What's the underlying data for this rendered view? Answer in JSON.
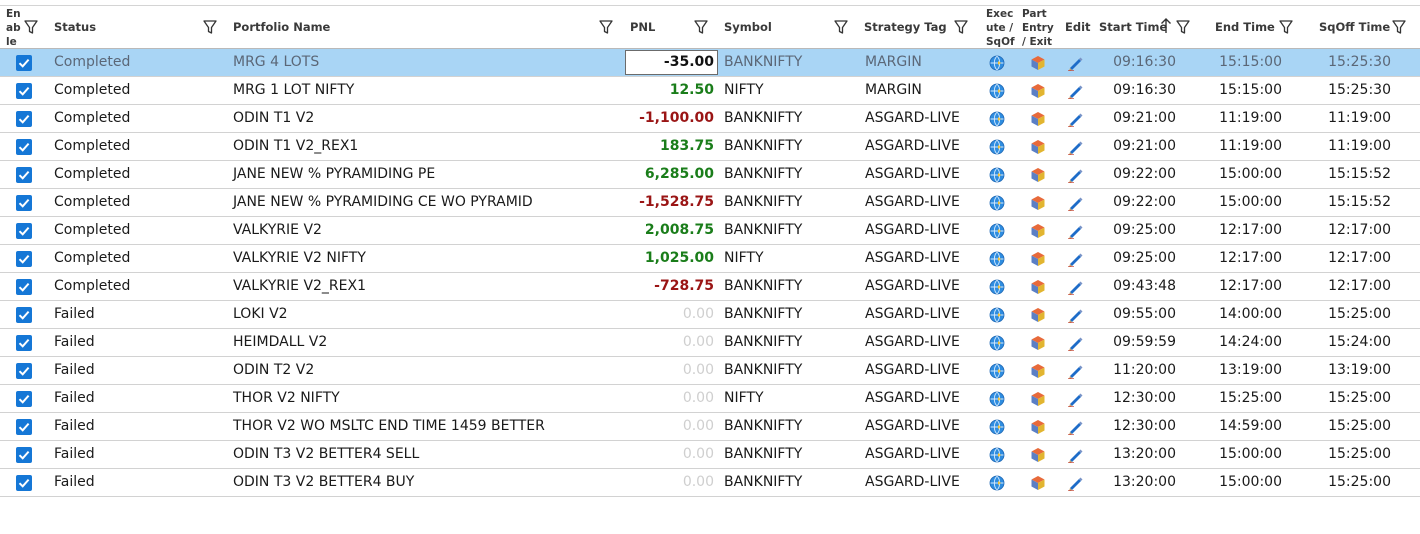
{
  "columns": {
    "enable": [
      "En",
      "ab",
      "le"
    ],
    "status": "Status",
    "portfolio": "Portfolio Name",
    "pnl": "PNL",
    "symbol": "Symbol",
    "strategy": "Strategy Tag",
    "execute": [
      "Exec",
      "ute /",
      "SqOf"
    ],
    "part_entry": [
      "Part",
      "Entry",
      "/ Exit"
    ],
    "edit": "Edit",
    "start_time": "Start Time",
    "end_time": "End Time",
    "sqoff_time": "SqOff Time"
  },
  "colors": {
    "selected_row": "#a9d5f5",
    "checkbox": "#1577d6",
    "pnl_positive": "#1a7d1a",
    "pnl_negative": "#9a1515",
    "pnl_zero": "#cfcfcf"
  },
  "icons": {
    "filter": "filter-icon",
    "sort": "sort-ascending-icon",
    "execute": "execute-globe-icon",
    "part_entry": "part-entry-cube-icon",
    "edit": "edit-pencil-icon",
    "checkbox": "checkbox-checked-icon"
  },
  "rows": [
    {
      "status": "Completed",
      "portfolio": "MRG 4 LOTS",
      "pnl": "-35.00",
      "pnl_sign": "neg",
      "symbol": "BANKNIFTY",
      "strategy": "MARGIN",
      "start": "09:16:30",
      "end": "15:15:00",
      "sqoff": "15:25:30",
      "selected": true
    },
    {
      "status": "Completed",
      "portfolio": "MRG 1 LOT NIFTY",
      "pnl": "12.50",
      "pnl_sign": "pos",
      "symbol": "NIFTY",
      "strategy": "MARGIN",
      "start": "09:16:30",
      "end": "15:15:00",
      "sqoff": "15:25:30"
    },
    {
      "status": "Completed",
      "portfolio": "ODIN T1 V2",
      "pnl": "-1,100.00",
      "pnl_sign": "neg",
      "symbol": "BANKNIFTY",
      "strategy": "ASGARD-LIVE",
      "start": "09:21:00",
      "end": "11:19:00",
      "sqoff": "11:19:00"
    },
    {
      "status": "Completed",
      "portfolio": "ODIN T1 V2_REX1",
      "pnl": "183.75",
      "pnl_sign": "pos",
      "symbol": "BANKNIFTY",
      "strategy": "ASGARD-LIVE",
      "start": "09:21:00",
      "end": "11:19:00",
      "sqoff": "11:19:00"
    },
    {
      "status": "Completed",
      "portfolio": "JANE NEW % PYRAMIDING PE",
      "pnl": "6,285.00",
      "pnl_sign": "pos",
      "symbol": "BANKNIFTY",
      "strategy": "ASGARD-LIVE",
      "start": "09:22:00",
      "end": "15:00:00",
      "sqoff": "15:15:52"
    },
    {
      "status": "Completed",
      "portfolio": "JANE NEW % PYRAMIDING CE WO PYRAMID",
      "pnl": "-1,528.75",
      "pnl_sign": "neg",
      "symbol": "BANKNIFTY",
      "strategy": "ASGARD-LIVE",
      "start": "09:22:00",
      "end": "15:00:00",
      "sqoff": "15:15:52"
    },
    {
      "status": "Completed",
      "portfolio": "VALKYRIE V2",
      "pnl": "2,008.75",
      "pnl_sign": "pos",
      "symbol": "BANKNIFTY",
      "strategy": "ASGARD-LIVE",
      "start": "09:25:00",
      "end": "12:17:00",
      "sqoff": "12:17:00"
    },
    {
      "status": "Completed",
      "portfolio": "VALKYRIE V2 NIFTY",
      "pnl": "1,025.00",
      "pnl_sign": "pos",
      "symbol": "NIFTY",
      "strategy": "ASGARD-LIVE",
      "start": "09:25:00",
      "end": "12:17:00",
      "sqoff": "12:17:00"
    },
    {
      "status": "Completed",
      "portfolio": "VALKYRIE V2_REX1",
      "pnl": "-728.75",
      "pnl_sign": "neg",
      "symbol": "BANKNIFTY",
      "strategy": "ASGARD-LIVE",
      "start": "09:43:48",
      "end": "12:17:00",
      "sqoff": "12:17:00"
    },
    {
      "status": "Failed",
      "portfolio": "LOKI V2",
      "pnl": "0.00",
      "pnl_sign": "zero",
      "symbol": "BANKNIFTY",
      "strategy": "ASGARD-LIVE",
      "start": "09:55:00",
      "end": "14:00:00",
      "sqoff": "15:25:00"
    },
    {
      "status": "Failed",
      "portfolio": "HEIMDALL V2",
      "pnl": "0.00",
      "pnl_sign": "zero",
      "symbol": "BANKNIFTY",
      "strategy": "ASGARD-LIVE",
      "start": "09:59:59",
      "end": "14:24:00",
      "sqoff": "15:24:00"
    },
    {
      "status": "Failed",
      "portfolio": "ODIN T2 V2",
      "pnl": "0.00",
      "pnl_sign": "zero",
      "symbol": "BANKNIFTY",
      "strategy": "ASGARD-LIVE",
      "start": "11:20:00",
      "end": "13:19:00",
      "sqoff": "13:19:00"
    },
    {
      "status": "Failed",
      "portfolio": "THOR V2 NIFTY",
      "pnl": "0.00",
      "pnl_sign": "zero",
      "symbol": "NIFTY",
      "strategy": "ASGARD-LIVE",
      "start": "12:30:00",
      "end": "15:25:00",
      "sqoff": "15:25:00"
    },
    {
      "status": "Failed",
      "portfolio": "THOR V2 WO MSLTC END TIME 1459 BETTER",
      "pnl": "0.00",
      "pnl_sign": "zero",
      "symbol": "BANKNIFTY",
      "strategy": "ASGARD-LIVE",
      "start": "12:30:00",
      "end": "14:59:00",
      "sqoff": "15:25:00"
    },
    {
      "status": "Failed",
      "portfolio": "ODIN T3 V2 BETTER4 SELL",
      "pnl": "0.00",
      "pnl_sign": "zero",
      "symbol": "BANKNIFTY",
      "strategy": "ASGARD-LIVE",
      "start": "13:20:00",
      "end": "15:00:00",
      "sqoff": "15:25:00"
    },
    {
      "status": "Failed",
      "portfolio": "ODIN T3 V2 BETTER4 BUY",
      "pnl": "0.00",
      "pnl_sign": "zero",
      "symbol": "BANKNIFTY",
      "strategy": "ASGARD-LIVE",
      "start": "13:20:00",
      "end": "15:00:00",
      "sqoff": "15:25:00"
    }
  ]
}
